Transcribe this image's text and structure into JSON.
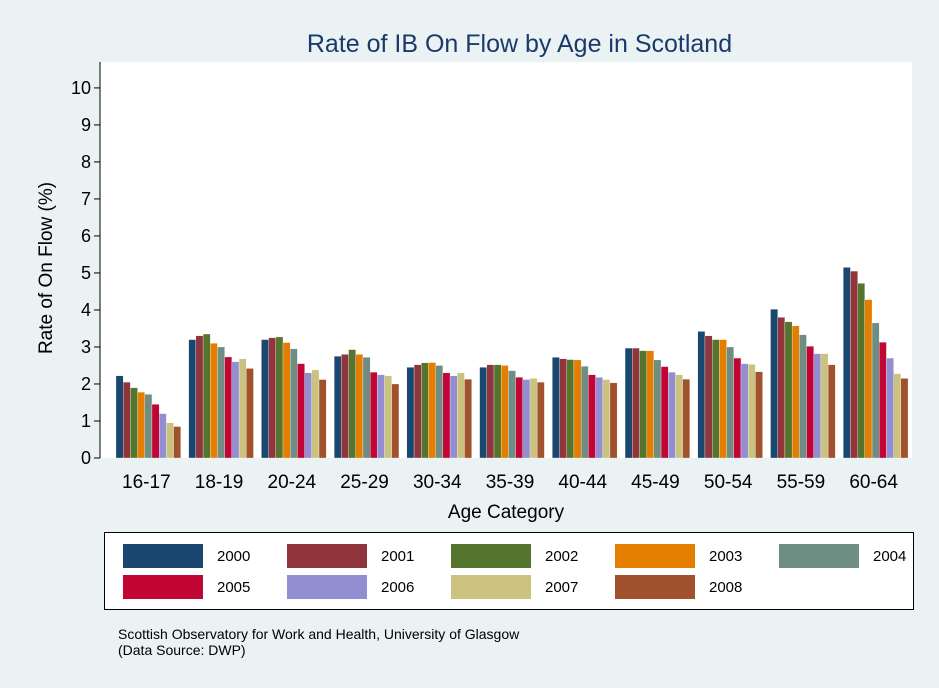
{
  "chart_data": {
    "type": "bar",
    "title": "Rate of IB On Flow by Age in Scotland",
    "xlabel": "Age Category",
    "ylabel": "Rate of On Flow (%)",
    "ylim": [
      0,
      10.7
    ],
    "yticks": [
      0,
      1,
      2,
      3,
      4,
      5,
      6,
      7,
      8,
      9,
      10
    ],
    "grid": false,
    "legend_position": "bottom",
    "categories": [
      "16-17",
      "18-19",
      "20-24",
      "25-29",
      "30-34",
      "35-39",
      "40-44",
      "45-49",
      "50-54",
      "55-59",
      "60-64"
    ],
    "series": [
      {
        "name": "2000",
        "color": "#1a476f",
        "values": [
          2.22,
          3.2,
          3.2,
          2.75,
          2.45,
          2.45,
          2.72,
          2.97,
          3.42,
          4.02,
          5.15
        ]
      },
      {
        "name": "2001",
        "color": "#90353b",
        "values": [
          2.05,
          3.3,
          3.25,
          2.8,
          2.52,
          2.52,
          2.68,
          2.97,
          3.3,
          3.8,
          5.05
        ]
      },
      {
        "name": "2002",
        "color": "#55752f",
        "values": [
          1.9,
          3.35,
          3.27,
          2.93,
          2.57,
          2.52,
          2.66,
          2.9,
          3.2,
          3.68,
          4.72
        ]
      },
      {
        "name": "2003",
        "color": "#e37e00",
        "values": [
          1.78,
          3.1,
          3.12,
          2.8,
          2.58,
          2.5,
          2.65,
          2.9,
          3.2,
          3.57,
          4.28
        ]
      },
      {
        "name": "2004",
        "color": "#6e8e84",
        "values": [
          1.72,
          3.0,
          2.95,
          2.72,
          2.5,
          2.36,
          2.48,
          2.65,
          3.0,
          3.33,
          3.65
        ]
      },
      {
        "name": "2005",
        "color": "#c10534",
        "values": [
          1.45,
          2.73,
          2.55,
          2.32,
          2.3,
          2.18,
          2.25,
          2.47,
          2.7,
          3.02,
          3.13
        ]
      },
      {
        "name": "2006",
        "color": "#938dd2",
        "values": [
          1.2,
          2.6,
          2.3,
          2.25,
          2.22,
          2.12,
          2.18,
          2.32,
          2.55,
          2.82,
          2.7
        ]
      },
      {
        "name": "2007",
        "color": "#cac27e",
        "values": [
          0.95,
          2.68,
          2.38,
          2.22,
          2.3,
          2.15,
          2.12,
          2.25,
          2.53,
          2.82,
          2.28
        ]
      },
      {
        "name": "2008",
        "color": "#a0522d",
        "values": [
          0.85,
          2.42,
          2.12,
          2.0,
          2.13,
          2.05,
          2.03,
          2.13,
          2.33,
          2.52,
          2.15
        ]
      }
    ]
  },
  "footer": {
    "line1": "Scottish Observatory for Work and Health, University of Glasgow",
    "line2": "(Data Source: DWP)"
  }
}
